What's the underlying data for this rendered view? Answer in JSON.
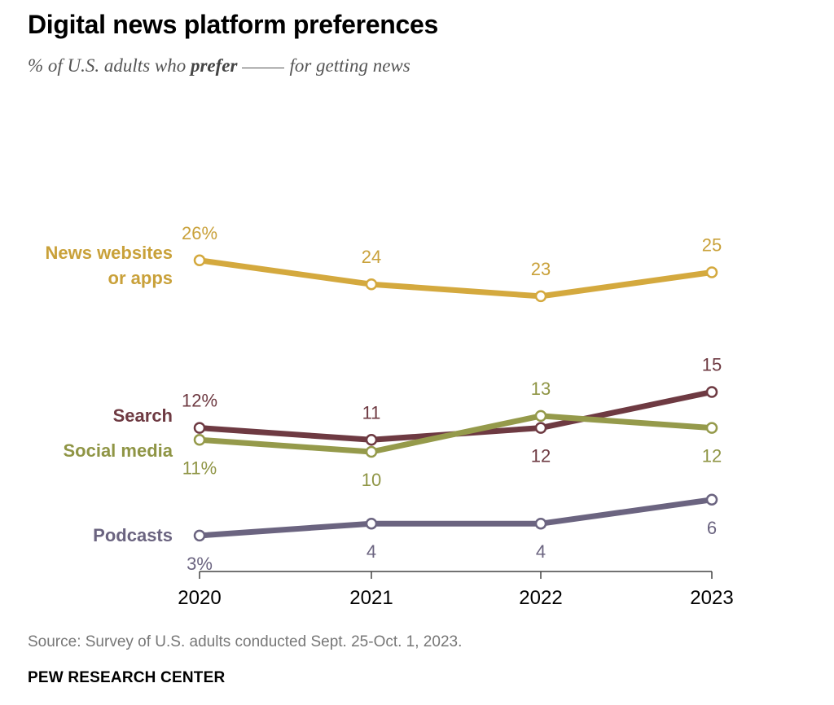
{
  "title": "Digital news platform preferences",
  "subtitle": {
    "prefix": "% of U.S. adults who",
    "emphasis": "prefer",
    "suffix": "for getting news"
  },
  "source": "Source: Survey of U.S. adults conducted Sept. 25-Oct. 1, 2023.",
  "brand": "PEW RESEARCH CENTER",
  "chart_data": {
    "type": "line",
    "x": [
      "2020",
      "2021",
      "2022",
      "2023"
    ],
    "ylim": [
      0,
      30
    ],
    "grid": false,
    "legend": "inline-left",
    "series": [
      {
        "key": "news",
        "name_lines": [
          "News websites",
          "or apps"
        ],
        "color": "#d4a93e",
        "values": [
          26,
          24,
          23,
          25
        ],
        "labels": [
          "26%",
          "24",
          "23",
          "25"
        ],
        "label_pos": [
          "above",
          "above",
          "above",
          "above"
        ]
      },
      {
        "key": "search",
        "name_lines": [
          "Search"
        ],
        "color": "#6e3a42",
        "values": [
          12,
          11,
          12,
          15
        ],
        "labels": [
          "12%",
          "11",
          "12",
          "15"
        ],
        "label_pos": [
          "above",
          "above",
          "below",
          "above"
        ]
      },
      {
        "key": "social",
        "name_lines": [
          "Social media"
        ],
        "color": "#959a4b",
        "values": [
          11,
          10,
          13,
          12
        ],
        "labels": [
          "11%",
          "10",
          "13",
          "12"
        ],
        "label_pos": [
          "below",
          "below",
          "above",
          "below"
        ]
      },
      {
        "key": "podcasts",
        "name_lines": [
          "Podcasts"
        ],
        "color": "#6b6480",
        "values": [
          3,
          4,
          4,
          6
        ],
        "labels": [
          "3%",
          "4",
          "4",
          "6"
        ],
        "label_pos": [
          "below",
          "below",
          "below",
          "below"
        ]
      }
    ]
  }
}
